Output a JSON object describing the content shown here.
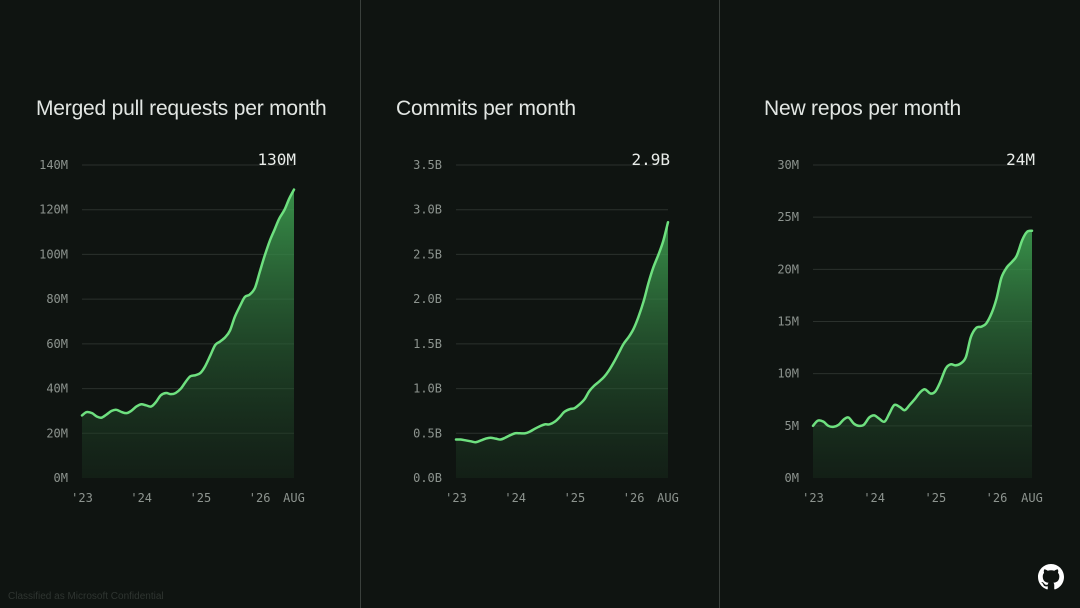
{
  "footer": {
    "classification": "Classified as Microsoft Confidential"
  },
  "chart_data": [
    {
      "type": "area",
      "title": "Merged pull requests per month",
      "latest_label": "130M",
      "ylim": [
        0,
        140
      ],
      "yticks": [
        0,
        20,
        40,
        60,
        80,
        100,
        120,
        140
      ],
      "ytick_labels": [
        "0M",
        "20M",
        "40M",
        "60M",
        "80M",
        "100M",
        "120M",
        "140M"
      ],
      "xticks": [
        2023.0,
        2024.0,
        2025.0,
        2026.0,
        2026.58
      ],
      "xtick_labels": [
        "'23",
        "'24",
        "'25",
        "'26",
        "AUG"
      ],
      "grid": true,
      "x": [
        2023.0,
        2023.08,
        2023.17,
        2023.25,
        2023.33,
        2023.42,
        2023.5,
        2023.58,
        2023.67,
        2023.75,
        2023.83,
        2023.92,
        2024.0,
        2024.08,
        2024.17,
        2024.25,
        2024.33,
        2024.42,
        2024.5,
        2024.58,
        2024.67,
        2024.75,
        2024.83,
        2024.92,
        2025.0,
        2025.08,
        2025.17,
        2025.25,
        2025.33,
        2025.42,
        2025.5,
        2025.58,
        2025.67,
        2025.75,
        2025.83,
        2025.92,
        2026.0,
        2026.08,
        2026.17,
        2026.25,
        2026.33,
        2026.42,
        2026.5,
        2026.58
      ],
      "series": [
        {
          "values": [
            28,
            29.5,
            29,
            27.5,
            27,
            28.5,
            30,
            30.5,
            29.5,
            29,
            30,
            32,
            33,
            32.5,
            32,
            34,
            37,
            38,
            37.5,
            38,
            40,
            43,
            45.5,
            46,
            47,
            50,
            55,
            59.5,
            61,
            63,
            66,
            72,
            77,
            81,
            82,
            85,
            92,
            99,
            106,
            111,
            116,
            120,
            125,
            129
          ]
        }
      ]
    },
    {
      "type": "area",
      "title": "Commits per month",
      "latest_label": "2.9B",
      "ylim": [
        0,
        3.5
      ],
      "yticks": [
        0,
        0.5,
        1.0,
        1.5,
        2.0,
        2.5,
        3.0,
        3.5
      ],
      "ytick_labels": [
        "0.0B",
        "0.5B",
        "1.0B",
        "1.5B",
        "2.0B",
        "2.5B",
        "3.0B",
        "3.5B"
      ],
      "xticks": [
        2023.0,
        2024.0,
        2025.0,
        2026.0,
        2026.58
      ],
      "xtick_labels": [
        "'23",
        "'24",
        "'25",
        "'26",
        "AUG"
      ],
      "grid": true,
      "x": [
        2023.0,
        2023.08,
        2023.17,
        2023.25,
        2023.33,
        2023.42,
        2023.5,
        2023.58,
        2023.67,
        2023.75,
        2023.83,
        2023.92,
        2024.0,
        2024.08,
        2024.17,
        2024.25,
        2024.33,
        2024.42,
        2024.5,
        2024.58,
        2024.67,
        2024.75,
        2024.83,
        2024.92,
        2025.0,
        2025.08,
        2025.17,
        2025.25,
        2025.33,
        2025.42,
        2025.5,
        2025.58,
        2025.67,
        2025.75,
        2025.83,
        2025.92,
        2026.0,
        2026.08,
        2026.17,
        2026.25,
        2026.33,
        2026.42,
        2026.5,
        2026.58
      ],
      "series": [
        {
          "values": [
            0.43,
            0.43,
            0.42,
            0.41,
            0.4,
            0.42,
            0.44,
            0.45,
            0.44,
            0.43,
            0.45,
            0.48,
            0.5,
            0.5,
            0.5,
            0.52,
            0.55,
            0.58,
            0.6,
            0.6,
            0.63,
            0.68,
            0.74,
            0.77,
            0.78,
            0.82,
            0.88,
            0.97,
            1.03,
            1.08,
            1.13,
            1.2,
            1.3,
            1.4,
            1.5,
            1.58,
            1.67,
            1.8,
            1.98,
            2.18,
            2.35,
            2.5,
            2.65,
            2.86
          ]
        }
      ]
    },
    {
      "type": "area",
      "title": "New repos per month",
      "latest_label": "24M",
      "ylim": [
        0,
        30
      ],
      "yticks": [
        0,
        5,
        10,
        15,
        20,
        25,
        30
      ],
      "ytick_labels": [
        "0M",
        "5M",
        "10M",
        "15M",
        "20M",
        "25M",
        "30M"
      ],
      "xticks": [
        2023.0,
        2024.0,
        2025.0,
        2026.0,
        2026.58
      ],
      "xtick_labels": [
        "'23",
        "'24",
        "'25",
        "'26",
        "AUG"
      ],
      "grid": true,
      "x": [
        2023.0,
        2023.08,
        2023.17,
        2023.25,
        2023.33,
        2023.42,
        2023.5,
        2023.58,
        2023.67,
        2023.75,
        2023.83,
        2023.92,
        2024.0,
        2024.08,
        2024.17,
        2024.25,
        2024.33,
        2024.42,
        2024.5,
        2024.58,
        2024.67,
        2024.75,
        2024.83,
        2024.92,
        2025.0,
        2025.08,
        2025.17,
        2025.25,
        2025.33,
        2025.42,
        2025.5,
        2025.58,
        2025.67,
        2025.75,
        2025.83,
        2025.92,
        2026.0,
        2026.08,
        2026.17,
        2026.25,
        2026.33,
        2026.42,
        2026.5,
        2026.58
      ],
      "series": [
        {
          "values": [
            5.0,
            5.5,
            5.4,
            5.0,
            4.9,
            5.1,
            5.6,
            5.8,
            5.2,
            5.0,
            5.1,
            5.8,
            6.0,
            5.7,
            5.4,
            6.2,
            7.0,
            6.8,
            6.5,
            7.0,
            7.6,
            8.2,
            8.5,
            8.1,
            8.3,
            9.2,
            10.5,
            10.9,
            10.8,
            11.0,
            11.6,
            13.5,
            14.4,
            14.5,
            14.8,
            15.8,
            17.2,
            19.2,
            20.2,
            20.7,
            21.3,
            22.8,
            23.6,
            23.7
          ]
        }
      ]
    }
  ]
}
